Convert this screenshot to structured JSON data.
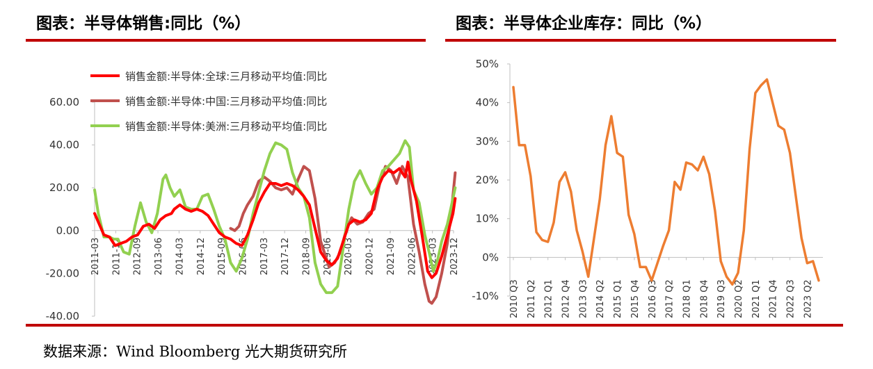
{
  "left_title": "图表：半导体销售:同比（%）",
  "right_title": "图表：半导体企业库存：同比（%）",
  "source": "数据来源：Wind Bloomberg 光大期货研究所",
  "chart_data": [
    {
      "type": "line",
      "title": "图表：半导体销售:同比（%）",
      "ylim": [
        -40,
        60
      ],
      "yticks": [
        "60.00",
        "40.00",
        "20.00",
        "0.00",
        "-20.00",
        "-40.00"
      ],
      "ytick_values": [
        60,
        40,
        20,
        0,
        -20,
        -40
      ],
      "xticks": [
        "2011-03",
        "2011-12",
        "2012-09",
        "2013-06",
        "2014-03",
        "2014-12",
        "2015-09",
        "2016-06",
        "2017-03",
        "2017-12",
        "2018-09",
        "2019-06",
        "2020-03",
        "2020-12",
        "2021-09",
        "2022-06",
        "2023-03",
        "2023-12"
      ],
      "xtick_values": [
        2011.17,
        2011.92,
        2012.67,
        2013.42,
        2014.17,
        2014.92,
        2015.67,
        2016.42,
        2017.17,
        2017.92,
        2018.67,
        2019.42,
        2020.17,
        2020.92,
        2021.67,
        2022.42,
        2023.17,
        2023.92
      ],
      "xlim": [
        2011.17,
        2023.92
      ],
      "legend": "top-left",
      "series": [
        {
          "name": "销售金额:半导体:全球:三月移动平均值:同比",
          "color": "#ff0000",
          "points": [
            [
              2011.17,
              8
            ],
            [
              2011.3,
              4
            ],
            [
              2011.5,
              -2
            ],
            [
              2011.7,
              -3
            ],
            [
              2011.9,
              -7
            ],
            [
              2012.1,
              -6
            ],
            [
              2012.3,
              -5
            ],
            [
              2012.5,
              -3
            ],
            [
              2012.7,
              -2
            ],
            [
              2012.9,
              2
            ],
            [
              2013.1,
              3
            ],
            [
              2013.3,
              1
            ],
            [
              2013.5,
              5
            ],
            [
              2013.7,
              7
            ],
            [
              2013.9,
              8
            ],
            [
              2014.0,
              10
            ],
            [
              2014.2,
              12
            ],
            [
              2014.4,
              10
            ],
            [
              2014.6,
              9
            ],
            [
              2014.8,
              10
            ],
            [
              2015.0,
              9
            ],
            [
              2015.2,
              7
            ],
            [
              2015.4,
              3
            ],
            [
              2015.6,
              -1
            ],
            [
              2015.8,
              -3
            ],
            [
              2016.0,
              -4
            ],
            [
              2016.2,
              -6
            ],
            [
              2016.4,
              -7
            ],
            [
              2016.6,
              -2
            ],
            [
              2016.8,
              5
            ],
            [
              2017.0,
              13
            ],
            [
              2017.2,
              18
            ],
            [
              2017.4,
              22
            ],
            [
              2017.6,
              22
            ],
            [
              2017.8,
              21
            ],
            [
              2018.0,
              22
            ],
            [
              2018.2,
              21
            ],
            [
              2018.4,
              19
            ],
            [
              2018.6,
              16
            ],
            [
              2018.8,
              12
            ],
            [
              2019.0,
              1
            ],
            [
              2019.2,
              -10
            ],
            [
              2019.4,
              -14
            ],
            [
              2019.6,
              -16
            ],
            [
              2019.8,
              -13
            ],
            [
              2020.0,
              -5
            ],
            [
              2020.2,
              3
            ],
            [
              2020.4,
              5
            ],
            [
              2020.6,
              4
            ],
            [
              2020.8,
              5
            ],
            [
              2021.0,
              8
            ],
            [
              2021.2,
              19
            ],
            [
              2021.4,
              25
            ],
            [
              2021.6,
              28
            ],
            [
              2021.8,
              27
            ],
            [
              2022.0,
              29
            ],
            [
              2022.2,
              25
            ],
            [
              2022.3,
              32
            ],
            [
              2022.4,
              24
            ],
            [
              2022.6,
              14
            ],
            [
              2022.8,
              -2
            ],
            [
              2023.0,
              -19
            ],
            [
              2023.15,
              -22
            ],
            [
              2023.3,
              -20
            ],
            [
              2023.5,
              -12
            ],
            [
              2023.7,
              -2
            ],
            [
              2023.9,
              8
            ],
            [
              2023.98,
              15
            ]
          ]
        },
        {
          "name": "销售金额:半导体:中国:三月移动平均值:同比",
          "color": "#c0504d",
          "points": [
            [
              2016.0,
              1
            ],
            [
              2016.15,
              0
            ],
            [
              2016.3,
              2
            ],
            [
              2016.45,
              8
            ],
            [
              2016.6,
              12
            ],
            [
              2016.8,
              16
            ],
            [
              2017.0,
              23
            ],
            [
              2017.2,
              25
            ],
            [
              2017.4,
              23
            ],
            [
              2017.6,
              20
            ],
            [
              2017.8,
              19
            ],
            [
              2018.0,
              20
            ],
            [
              2018.2,
              17
            ],
            [
              2018.4,
              24
            ],
            [
              2018.6,
              30
            ],
            [
              2018.8,
              28
            ],
            [
              2019.0,
              15
            ],
            [
              2019.2,
              -5
            ],
            [
              2019.4,
              -13
            ],
            [
              2019.5,
              -17
            ],
            [
              2019.7,
              -15
            ],
            [
              2019.9,
              -10
            ],
            [
              2020.1,
              0
            ],
            [
              2020.3,
              6
            ],
            [
              2020.5,
              3
            ],
            [
              2020.7,
              4
            ],
            [
              2020.9,
              8
            ],
            [
              2021.1,
              10
            ],
            [
              2021.3,
              22
            ],
            [
              2021.5,
              30
            ],
            [
              2021.7,
              28
            ],
            [
              2021.9,
              22
            ],
            [
              2022.1,
              30
            ],
            [
              2022.3,
              25
            ],
            [
              2022.5,
              3
            ],
            [
              2022.7,
              -10
            ],
            [
              2022.9,
              -25
            ],
            [
              2023.05,
              -33
            ],
            [
              2023.15,
              -34
            ],
            [
              2023.3,
              -31
            ],
            [
              2023.5,
              -20
            ],
            [
              2023.7,
              -6
            ],
            [
              2023.85,
              10
            ],
            [
              2023.98,
              27
            ]
          ]
        },
        {
          "name": "销售金额:半导体:美洲:三月移动平均值:同比",
          "color": "#92d050",
          "points": [
            [
              2011.17,
              19
            ],
            [
              2011.3,
              8
            ],
            [
              2011.5,
              -3
            ],
            [
              2011.7,
              -3
            ],
            [
              2011.85,
              -4
            ],
            [
              2012.0,
              -4
            ],
            [
              2012.2,
              -10
            ],
            [
              2012.4,
              -11
            ],
            [
              2012.6,
              2
            ],
            [
              2012.8,
              13
            ],
            [
              2013.0,
              4
            ],
            [
              2013.2,
              -1
            ],
            [
              2013.4,
              8
            ],
            [
              2013.6,
              24
            ],
            [
              2013.7,
              26
            ],
            [
              2013.85,
              20
            ],
            [
              2014.0,
              16
            ],
            [
              2014.2,
              19
            ],
            [
              2014.4,
              11
            ],
            [
              2014.6,
              10
            ],
            [
              2014.8,
              10
            ],
            [
              2015.0,
              16
            ],
            [
              2015.2,
              17
            ],
            [
              2015.4,
              10
            ],
            [
              2015.6,
              2
            ],
            [
              2015.8,
              -4
            ],
            [
              2016.0,
              -15
            ],
            [
              2016.2,
              -19
            ],
            [
              2016.4,
              -13
            ],
            [
              2016.6,
              -4
            ],
            [
              2016.8,
              8
            ],
            [
              2017.0,
              18
            ],
            [
              2017.2,
              28
            ],
            [
              2017.4,
              36
            ],
            [
              2017.6,
              41
            ],
            [
              2017.8,
              40
            ],
            [
              2018.0,
              38
            ],
            [
              2018.2,
              27
            ],
            [
              2018.4,
              20
            ],
            [
              2018.6,
              16
            ],
            [
              2018.8,
              6
            ],
            [
              2019.0,
              -15
            ],
            [
              2019.2,
              -25
            ],
            [
              2019.4,
              -29
            ],
            [
              2019.6,
              -29
            ],
            [
              2019.8,
              -26
            ],
            [
              2020.0,
              -8
            ],
            [
              2020.2,
              10
            ],
            [
              2020.4,
              23
            ],
            [
              2020.6,
              28
            ],
            [
              2020.8,
              22
            ],
            [
              2021.0,
              17
            ],
            [
              2021.2,
              20
            ],
            [
              2021.4,
              28
            ],
            [
              2021.6,
              30
            ],
            [
              2021.8,
              33
            ],
            [
              2022.0,
              36
            ],
            [
              2022.2,
              42
            ],
            [
              2022.35,
              39
            ],
            [
              2022.5,
              19
            ],
            [
              2022.7,
              13
            ],
            [
              2022.9,
              -2
            ],
            [
              2023.05,
              -10
            ],
            [
              2023.2,
              -19
            ],
            [
              2023.35,
              -14
            ],
            [
              2023.5,
              -5
            ],
            [
              2023.7,
              3
            ],
            [
              2023.85,
              12
            ],
            [
              2023.98,
              20
            ]
          ]
        }
      ]
    },
    {
      "type": "line",
      "title": "图表：半导体企业库存：同比（%）",
      "ylim": [
        -10,
        50
      ],
      "yticks": [
        "50%",
        "40%",
        "30%",
        "20%",
        "10%",
        "0%",
        "-10%"
      ],
      "ytick_values": [
        50,
        40,
        30,
        20,
        10,
        0,
        -10
      ],
      "xticks": [
        "2010 Q3",
        "2011 Q2",
        "2012 Q1",
        "2012 Q4",
        "2013 Q3",
        "2014 Q2",
        "2015 Q1",
        "2015 Q4",
        "2016 Q3",
        "2017 Q2",
        "2018 Q1",
        "2018 Q4",
        "2019 Q3",
        "2020 Q2",
        "2021 Q1",
        "2021 Q4",
        "2022 Q3",
        "2023 Q2"
      ],
      "xlim": [
        0,
        53
      ],
      "series": [
        {
          "name": "",
          "color": "#ed7d31",
          "points": [
            [
              0,
              44
            ],
            [
              1,
              29
            ],
            [
              2,
              29
            ],
            [
              3,
              21
            ],
            [
              4,
              6.5
            ],
            [
              5,
              4.5
            ],
            [
              6,
              4
            ],
            [
              7,
              9
            ],
            [
              8,
              19.5
            ],
            [
              9,
              22
            ],
            [
              10,
              17
            ],
            [
              11,
              7
            ],
            [
              12,
              1.5
            ],
            [
              13,
              -5
            ],
            [
              14,
              5
            ],
            [
              15,
              15
            ],
            [
              16,
              29
            ],
            [
              17,
              36.5
            ],
            [
              18,
              27
            ],
            [
              19,
              26
            ],
            [
              20,
              11
            ],
            [
              21,
              6
            ],
            [
              22,
              -2.5
            ],
            [
              23,
              -2.5
            ],
            [
              24,
              -6
            ],
            [
              25,
              -1.5
            ],
            [
              26,
              3
            ],
            [
              27,
              7
            ],
            [
              28,
              19.5
            ],
            [
              29,
              17.5
            ],
            [
              30,
              24.5
            ],
            [
              31,
              24
            ],
            [
              32,
              22.5
            ],
            [
              33,
              26
            ],
            [
              34,
              21.5
            ],
            [
              35,
              12
            ],
            [
              36,
              -1
            ],
            [
              37,
              -5
            ],
            [
              38,
              -7
            ],
            [
              39,
              -4
            ],
            [
              40,
              7
            ],
            [
              41,
              28
            ],
            [
              42,
              42.5
            ],
            [
              43,
              44.5
            ],
            [
              44,
              46
            ],
            [
              45,
              40
            ],
            [
              46,
              34
            ],
            [
              47,
              33
            ],
            [
              48,
              27
            ],
            [
              49,
              16
            ],
            [
              50,
              5
            ],
            [
              51,
              -1.5
            ],
            [
              52,
              -1
            ],
            [
              53,
              -6
            ]
          ]
        }
      ]
    }
  ]
}
